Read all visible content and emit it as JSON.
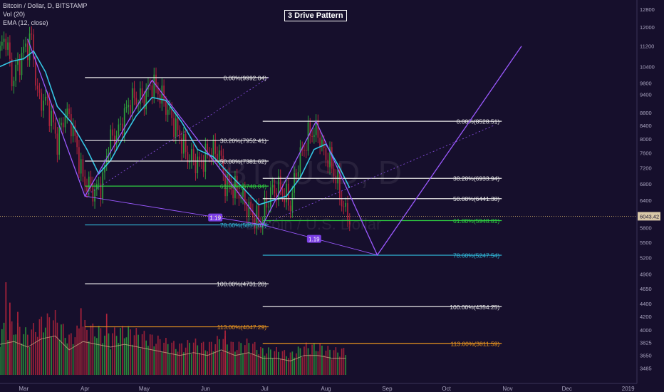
{
  "header": {
    "symbol": "Bitcoin / Dollar, D, BITSTAMP",
    "vol": "Vol (20)",
    "ema": "EMA (12, close)"
  },
  "watermark": {
    "ticker": "BTCUSD, D",
    "name": "Bitcoin / U.S. Dollar"
  },
  "colors": {
    "background": "#160f2c",
    "up": "#2e9e3c",
    "down": "#b0233b",
    "ema": "#35c8e6",
    "pattern": "#9b59ff",
    "fib_white": "#e6e6e6",
    "fib_green": "#2ecc40",
    "fib_cyan": "#30b8d8",
    "fib_orange": "#e8941f",
    "price_tag": "#d9c8a8"
  },
  "chart_data": {
    "type": "candlestick",
    "title": "3 Drive Pattern",
    "xlabel": "",
    "ylabel": "",
    "x_ticks": [
      "Mar",
      "Apr",
      "May",
      "Jun",
      "Jul",
      "Aug",
      "Sep",
      "Oct",
      "Nov",
      "Dec",
      "2019"
    ],
    "y_ticks": [
      12800,
      12000,
      11200,
      10400,
      9800,
      9400,
      8800,
      8400,
      8000,
      7600,
      7200,
      6800,
      6400,
      5800,
      5500,
      5200,
      4900,
      4650,
      4400,
      4200,
      4000,
      3825,
      3650,
      3485
    ],
    "ylim": [
      3400,
      12900
    ],
    "y_scale": "log",
    "current_price": "6043.42",
    "date_range": [
      "2018-02-17",
      "2019-01-04"
    ],
    "price_series": [
      [
        "2018-02-17",
        11000
      ],
      [
        "2018-02-20",
        11600
      ],
      [
        "2018-02-23",
        9900
      ],
      [
        "2018-02-26",
        10400
      ],
      [
        "2018-03-01",
        11000
      ],
      [
        "2018-03-05",
        11500
      ],
      [
        "2018-03-08",
        9300
      ],
      [
        "2018-03-13",
        9100
      ],
      [
        "2018-03-18",
        7900
      ],
      [
        "2018-03-22",
        8800
      ],
      [
        "2018-03-25",
        8500
      ],
      [
        "2018-03-31",
        6900
      ],
      [
        "2018-04-06",
        6600
      ],
      [
        "2018-04-10",
        6850
      ],
      [
        "2018-04-13",
        7900
      ],
      [
        "2018-04-18",
        8200
      ],
      [
        "2018-04-24",
        9200
      ],
      [
        "2018-05-01",
        9300
      ],
      [
        "2018-05-05",
        9800
      ],
      [
        "2018-05-10",
        9300
      ],
      [
        "2018-05-15",
        8600
      ],
      [
        "2018-05-23",
        7500
      ],
      [
        "2018-05-29",
        7300
      ],
      [
        "2018-06-03",
        7650
      ],
      [
        "2018-06-08",
        7600
      ],
      [
        "2018-06-11",
        6800
      ],
      [
        "2018-06-18",
        6600
      ],
      [
        "2018-06-24",
        6100
      ],
      [
        "2018-06-29",
        5900
      ],
      [
        "2018-07-04",
        6600
      ],
      [
        "2018-07-09",
        6700
      ],
      [
        "2018-07-14",
        6300
      ],
      [
        "2018-07-18",
        7350
      ],
      [
        "2018-07-24",
        8200
      ],
      [
        "2018-07-28",
        8200
      ],
      [
        "2018-07-31",
        7600
      ],
      [
        "2018-08-03",
        7400
      ],
      [
        "2018-08-07",
        6800
      ],
      [
        "2018-08-10",
        6200
      ],
      [
        "2018-08-13",
        6043
      ]
    ],
    "ema_series": [
      [
        "2018-02-17",
        10400
      ],
      [
        "2018-02-23",
        10600
      ],
      [
        "2018-03-01",
        10700
      ],
      [
        "2018-03-06",
        11000
      ],
      [
        "2018-03-12",
        10200
      ],
      [
        "2018-03-18",
        9000
      ],
      [
        "2018-03-25",
        8500
      ],
      [
        "2018-04-02",
        7700
      ],
      [
        "2018-04-08",
        7050
      ],
      [
        "2018-04-14",
        7400
      ],
      [
        "2018-04-20",
        8000
      ],
      [
        "2018-04-27",
        8700
      ],
      [
        "2018-05-05",
        9300
      ],
      [
        "2018-05-12",
        9200
      ],
      [
        "2018-05-20",
        8500
      ],
      [
        "2018-05-28",
        7700
      ],
      [
        "2018-06-05",
        7500
      ],
      [
        "2018-06-12",
        7100
      ],
      [
        "2018-06-20",
        6700
      ],
      [
        "2018-06-28",
        6300
      ],
      [
        "2018-07-05",
        6400
      ],
      [
        "2018-07-12",
        6500
      ],
      [
        "2018-07-19",
        6950
      ],
      [
        "2018-07-26",
        7700
      ],
      [
        "2018-08-01",
        7850
      ],
      [
        "2018-08-08",
        7200
      ],
      [
        "2018-08-13",
        6700
      ]
    ],
    "volume_series": [
      [
        "2018-02-17",
        0.55
      ],
      [
        "2018-02-24",
        0.6
      ],
      [
        "2018-03-03",
        0.5
      ],
      [
        "2018-03-10",
        0.65
      ],
      [
        "2018-03-17",
        0.7
      ],
      [
        "2018-03-24",
        0.45
      ],
      [
        "2018-03-31",
        0.6
      ],
      [
        "2018-04-07",
        0.55
      ],
      [
        "2018-04-14",
        0.5
      ],
      [
        "2018-04-21",
        0.55
      ],
      [
        "2018-04-28",
        0.5
      ],
      [
        "2018-05-05",
        0.45
      ],
      [
        "2018-05-12",
        0.4
      ],
      [
        "2018-05-19",
        0.35
      ],
      [
        "2018-05-26",
        0.4
      ],
      [
        "2018-06-02",
        0.35
      ],
      [
        "2018-06-09",
        0.45
      ],
      [
        "2018-06-16",
        0.35
      ],
      [
        "2018-06-23",
        0.4
      ],
      [
        "2018-06-30",
        0.3
      ],
      [
        "2018-07-07",
        0.3
      ],
      [
        "2018-07-14",
        0.25
      ],
      [
        "2018-07-21",
        0.35
      ],
      [
        "2018-07-28",
        0.35
      ],
      [
        "2018-08-04",
        0.3
      ],
      [
        "2018-08-11",
        0.3
      ]
    ],
    "volume_spikes": [
      [
        "2018-02-20",
        1.0
      ],
      [
        "2018-02-22",
        0.78
      ],
      [
        "2018-02-26",
        0.68
      ],
      [
        "2018-03-30",
        0.72
      ],
      [
        "2018-04-12",
        0.66
      ],
      [
        "2018-06-11",
        0.48
      ]
    ],
    "pattern_lines": [
      [
        [
          "2018-03-03",
          11500
        ],
        [
          "2018-04-01",
          6500
        ],
        [
          "2018-05-05",
          9900
        ],
        [
          "2018-06-30",
          5857
        ],
        [
          "2018-07-27",
          8528
        ],
        [
          "2018-08-27",
          5250
        ],
        [
          "2018-11-08",
          11200
        ]
      ],
      [
        [
          "2018-04-01",
          6500
        ],
        [
          "2018-06-30",
          5857
        ],
        [
          "2018-08-27",
          5250
        ]
      ],
      [
        [
          "2018-04-01",
          6500
        ],
        [
          "2018-07-03",
          9992
        ]
      ],
      [
        [
          "2018-06-30",
          5857
        ],
        [
          "2018-10-25",
          8400
        ]
      ]
    ],
    "pattern_labels": [
      {
        "text": "1.19",
        "x": "2018-06-06",
        "y": 6010
      },
      {
        "text": "1.19",
        "x": "2018-07-26",
        "y": 5560
      }
    ],
    "fib_levels": [
      {
        "label": "0.00%(9992.04)",
        "value": 9992.04,
        "x_start": "2018-04-01",
        "x_end": "2018-07-03",
        "color": "white"
      },
      {
        "label": "38.20%(7952.41)",
        "value": 7952.41,
        "x_start": "2018-04-01",
        "x_end": "2018-07-03",
        "color": "white"
      },
      {
        "label": "50.00%(7381.62)",
        "value": 7381.62,
        "x_start": "2018-04-01",
        "x_end": "2018-07-03",
        "color": "white"
      },
      {
        "label": "61.80%(6740.84)",
        "value": 6740.84,
        "x_start": "2018-04-01",
        "x_end": "2018-07-03",
        "color": "green"
      },
      {
        "label": "78.60%(5857.02)",
        "value": 5857.02,
        "x_start": "2018-04-01",
        "x_end": "2018-07-03",
        "color": "cyan"
      },
      {
        "label": "100.00%(4731.20)",
        "value": 4731.2,
        "x_start": "2018-04-01",
        "x_end": "2018-07-03",
        "color": "white"
      },
      {
        "label": "113.00%(4047.29)",
        "value": 4047.29,
        "x_start": "2018-04-01",
        "x_end": "2018-07-03",
        "color": "orange"
      },
      {
        "label": "0.00%(8528.51)",
        "value": 8528.51,
        "x_start": "2018-06-30",
        "x_end": "2018-10-29",
        "color": "white"
      },
      {
        "label": "38.20%(6933.94)",
        "value": 6933.94,
        "x_start": "2018-06-30",
        "x_end": "2018-10-29",
        "color": "white"
      },
      {
        "label": "50.00%(6441.38)",
        "value": 6441.38,
        "x_start": "2018-06-30",
        "x_end": "2018-10-29",
        "color": "white"
      },
      {
        "label": "61.80%(5948.81)",
        "value": 5948.81,
        "x_start": "2018-06-30",
        "x_end": "2018-10-29",
        "color": "green"
      },
      {
        "label": "78.60%(5247.54)",
        "value": 5247.54,
        "x_start": "2018-06-30",
        "x_end": "2018-10-29",
        "color": "cyan"
      },
      {
        "label": "100.00%(4354.25)",
        "value": 4354.25,
        "x_start": "2018-06-30",
        "x_end": "2018-10-29",
        "color": "white"
      },
      {
        "label": "113.00%(3811.59)",
        "value": 3811.59,
        "x_start": "2018-06-30",
        "x_end": "2018-10-29",
        "color": "orange"
      }
    ]
  }
}
